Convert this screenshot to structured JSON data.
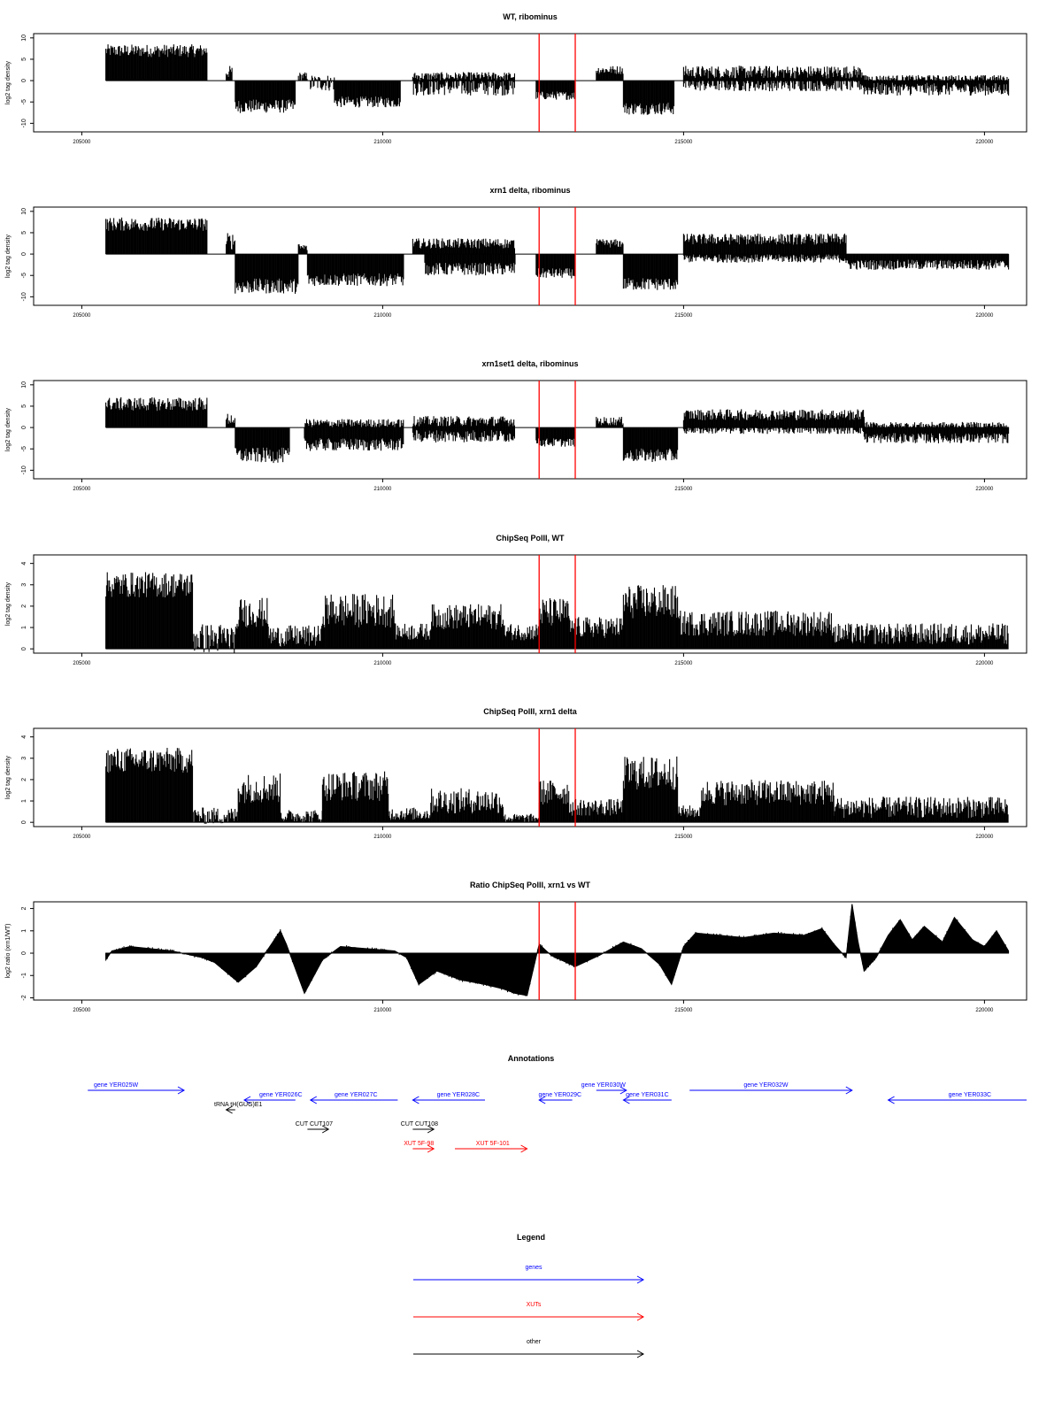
{
  "chart_data": [
    {
      "type": "bar",
      "title": "WT, ribominus",
      "xlabel": "",
      "ylabel": "log2 tag density",
      "xlim": [
        204200,
        220700
      ],
      "ylim": [
        -12,
        11
      ],
      "xticks": [
        205000,
        210000,
        215000,
        220000
      ],
      "yticks": [
        10,
        5,
        0,
        -5,
        -10
      ],
      "markers": [
        212600,
        213200
      ],
      "segments": [
        {
          "from": 205400,
          "to": 207080,
          "level": 7.0,
          "var": 1.5
        },
        {
          "from": 207400,
          "to": 207500,
          "level": 2.0,
          "var": 1.5
        },
        {
          "from": 207550,
          "to": 208550,
          "level": -6.0,
          "var": 1.6
        },
        {
          "from": 208600,
          "to": 208750,
          "level": 1.0,
          "var": 1.0
        },
        {
          "from": 208800,
          "to": 209200,
          "level": -0.5,
          "var": 2.0
        },
        {
          "from": 209200,
          "to": 210300,
          "level": -5.0,
          "var": 1.3
        },
        {
          "from": 210500,
          "to": 212200,
          "level": -1.5,
          "var": 2.0
        },
        {
          "from": 210500,
          "to": 212200,
          "level": 1.0,
          "var": 1.0
        },
        {
          "from": 212550,
          "to": 213200,
          "level": -3.5,
          "var": 1.0
        },
        {
          "from": 213550,
          "to": 214000,
          "level": 2.5,
          "var": 1.0
        },
        {
          "from": 214000,
          "to": 214850,
          "level": -6.5,
          "var": 1.5
        },
        {
          "from": 215000,
          "to": 218000,
          "level": 2.0,
          "var": 1.5
        },
        {
          "from": 215000,
          "to": 218000,
          "level": -1.0,
          "var": 1.5
        },
        {
          "from": 218000,
          "to": 220400,
          "level": -2.0,
          "var": 1.5
        },
        {
          "from": 218000,
          "to": 220400,
          "level": 0.5,
          "var": 0.8
        }
      ]
    },
    {
      "type": "bar",
      "title": "xrn1 delta, ribominus",
      "xlabel": "",
      "ylabel": "log2 tag density",
      "xlim": [
        204200,
        220700
      ],
      "ylim": [
        -12,
        11
      ],
      "xticks": [
        205000,
        210000,
        215000,
        220000
      ],
      "yticks": [
        10,
        5,
        0,
        -5,
        -10
      ],
      "markers": [
        212600,
        213200
      ],
      "segments": [
        {
          "from": 205400,
          "to": 207080,
          "level": 7.0,
          "var": 1.6
        },
        {
          "from": 207400,
          "to": 207550,
          "level": 3.0,
          "var": 2.0
        },
        {
          "from": 207550,
          "to": 208600,
          "level": -7.5,
          "var": 1.8
        },
        {
          "from": 208600,
          "to": 208750,
          "level": 1.5,
          "var": 1.0
        },
        {
          "from": 208750,
          "to": 210350,
          "level": -6.0,
          "var": 1.5
        },
        {
          "from": 210500,
          "to": 212200,
          "level": 2.5,
          "var": 1.2
        },
        {
          "from": 210700,
          "to": 212200,
          "level": -3.5,
          "var": 1.5
        },
        {
          "from": 212550,
          "to": 213200,
          "level": -4.5,
          "var": 1.2
        },
        {
          "from": 213550,
          "to": 214000,
          "level": 2.5,
          "var": 1.0
        },
        {
          "from": 214000,
          "to": 214900,
          "level": -7.0,
          "var": 1.5
        },
        {
          "from": 215000,
          "to": 217700,
          "level": 3.5,
          "var": 1.3
        },
        {
          "from": 215000,
          "to": 217700,
          "level": -1.0,
          "var": 1.0
        },
        {
          "from": 217700,
          "to": 220400,
          "level": -2.5,
          "var": 1.2
        }
      ]
    },
    {
      "type": "bar",
      "title": "xrn1set1 delta, ribominus",
      "xlabel": "",
      "ylabel": "log2 tag density",
      "xlim": [
        204200,
        220700
      ],
      "ylim": [
        -12,
        11
      ],
      "xticks": [
        205000,
        210000,
        215000,
        220000
      ],
      "yticks": [
        10,
        5,
        0,
        -5,
        -10
      ],
      "markers": [
        212600,
        213200
      ],
      "segments": [
        {
          "from": 205400,
          "to": 207080,
          "level": 5.5,
          "var": 1.6
        },
        {
          "from": 207400,
          "to": 207550,
          "level": 2.0,
          "var": 1.5
        },
        {
          "from": 207550,
          "to": 208450,
          "level": -6.5,
          "var": 1.8
        },
        {
          "from": 208700,
          "to": 210350,
          "level": -4.0,
          "var": 1.5
        },
        {
          "from": 208700,
          "to": 210350,
          "level": 1.0,
          "var": 1.0
        },
        {
          "from": 210500,
          "to": 212200,
          "level": -2.0,
          "var": 1.5
        },
        {
          "from": 210500,
          "to": 212200,
          "level": 1.5,
          "var": 1.2
        },
        {
          "from": 212550,
          "to": 213200,
          "level": -3.5,
          "var": 1.0
        },
        {
          "from": 213550,
          "to": 214000,
          "level": 1.5,
          "var": 1.0
        },
        {
          "from": 214000,
          "to": 214900,
          "level": -6.5,
          "var": 1.6
        },
        {
          "from": 215000,
          "to": 218000,
          "level": 3.0,
          "var": 1.3
        },
        {
          "from": 215000,
          "to": 218000,
          "level": -0.5,
          "var": 1.0
        },
        {
          "from": 218000,
          "to": 220400,
          "level": -2.5,
          "var": 1.2
        },
        {
          "from": 218000,
          "to": 220400,
          "level": 0.5,
          "var": 0.8
        }
      ]
    },
    {
      "type": "bar",
      "title": "ChipSeq PolII, WT",
      "xlabel": "",
      "ylabel": "log2 tag density",
      "xlim": [
        204200,
        220700
      ],
      "ylim": [
        -0.2,
        4.4
      ],
      "xticks": [
        205000,
        210000,
        215000,
        220000
      ],
      "yticks": [
        0,
        1,
        2,
        3,
        4
      ],
      "markers": [
        212600,
        213200
      ],
      "segments": [
        {
          "from": 205400,
          "to": 206850,
          "level": 3.0,
          "var": 0.6
        },
        {
          "from": 206850,
          "to": 207600,
          "level": 0.5,
          "var": 0.7
        },
        {
          "from": 207600,
          "to": 208100,
          "level": 1.7,
          "var": 0.7
        },
        {
          "from": 208100,
          "to": 209000,
          "level": 0.6,
          "var": 0.5
        },
        {
          "from": 209000,
          "to": 210200,
          "level": 1.8,
          "var": 0.8
        },
        {
          "from": 210200,
          "to": 210800,
          "level": 0.8,
          "var": 0.4
        },
        {
          "from": 210800,
          "to": 212000,
          "level": 1.5,
          "var": 0.6
        },
        {
          "from": 212000,
          "to": 212600,
          "level": 0.8,
          "var": 0.4
        },
        {
          "from": 212600,
          "to": 213100,
          "level": 1.7,
          "var": 0.7
        },
        {
          "from": 213100,
          "to": 214000,
          "level": 1.0,
          "var": 0.5
        },
        {
          "from": 214000,
          "to": 214900,
          "level": 2.2,
          "var": 0.8
        },
        {
          "from": 214900,
          "to": 217500,
          "level": 1.2,
          "var": 0.6
        },
        {
          "from": 217500,
          "to": 220400,
          "level": 0.7,
          "var": 0.5
        }
      ]
    },
    {
      "type": "bar",
      "title": "ChipSeq PolII, xrn1 delta",
      "xlabel": "",
      "ylabel": "log2 tag density",
      "xlim": [
        204200,
        220700
      ],
      "ylim": [
        -0.2,
        4.4
      ],
      "xticks": [
        205000,
        210000,
        215000,
        220000
      ],
      "yticks": [
        0,
        1,
        2,
        3,
        4
      ],
      "markers": [
        212600,
        213200
      ],
      "segments": [
        {
          "from": 205400,
          "to": 206850,
          "level": 2.9,
          "var": 0.6
        },
        {
          "from": 206850,
          "to": 207600,
          "level": 0.3,
          "var": 0.4
        },
        {
          "from": 207600,
          "to": 208300,
          "level": 1.6,
          "var": 0.7
        },
        {
          "from": 208300,
          "to": 209000,
          "level": 0.3,
          "var": 0.3
        },
        {
          "from": 209000,
          "to": 210100,
          "level": 1.7,
          "var": 0.7
        },
        {
          "from": 210100,
          "to": 210800,
          "level": 0.4,
          "var": 0.3
        },
        {
          "from": 210800,
          "to": 212000,
          "level": 1.0,
          "var": 0.6
        },
        {
          "from": 212000,
          "to": 212600,
          "level": 0.2,
          "var": 0.2
        },
        {
          "from": 212600,
          "to": 213100,
          "level": 1.4,
          "var": 0.6
        },
        {
          "from": 213100,
          "to": 214000,
          "level": 0.7,
          "var": 0.4
        },
        {
          "from": 214000,
          "to": 214900,
          "level": 2.3,
          "var": 0.8
        },
        {
          "from": 214900,
          "to": 215300,
          "level": 0.5,
          "var": 0.3
        },
        {
          "from": 215300,
          "to": 217500,
          "level": 1.4,
          "var": 0.6
        },
        {
          "from": 217500,
          "to": 220400,
          "level": 0.7,
          "var": 0.5
        }
      ]
    },
    {
      "type": "area",
      "title": "Ratio ChipSeq PolII, xrn1 vs WT",
      "xlabel": "",
      "ylabel": "log2 ratio (xrn1/WT)",
      "xlim": [
        204200,
        220700
      ],
      "ylim": [
        -2.1,
        2.3
      ],
      "xticks": [
        205000,
        210000,
        215000,
        220000
      ],
      "yticks": [
        2,
        1,
        0,
        -1,
        -2
      ],
      "markers": [
        212600,
        213200
      ],
      "x": [
        205400,
        205500,
        205800,
        206500,
        207000,
        207200,
        207600,
        207900,
        208300,
        208400,
        208700,
        208800,
        209000,
        209300,
        210200,
        210400,
        210600,
        210900,
        211300,
        211700,
        212000,
        212200,
        212400,
        212600,
        212800,
        213200,
        213600,
        214000,
        214300,
        214600,
        214800,
        215000,
        215200,
        215600,
        216000,
        216500,
        217000,
        217300,
        217500,
        217700,
        217800,
        217900,
        218000,
        218200,
        218400,
        218600,
        218800,
        219000,
        219300,
        219500,
        219800,
        220000,
        220200,
        220400
      ],
      "y": [
        -0.3,
        0.1,
        0.3,
        0.1,
        -0.2,
        -0.4,
        -1.3,
        -0.6,
        1.0,
        0.4,
        -1.8,
        -1.3,
        -0.3,
        0.3,
        0.1,
        -0.2,
        -1.4,
        -0.8,
        -1.2,
        -1.4,
        -1.6,
        -1.8,
        -1.9,
        0.4,
        -0.1,
        -0.6,
        -0.1,
        0.5,
        0.2,
        -0.5,
        -1.4,
        0.3,
        0.9,
        0.8,
        0.7,
        0.9,
        0.8,
        1.1,
        0.4,
        -0.2,
        2.2,
        0.5,
        -0.8,
        -0.2,
        0.8,
        1.5,
        0.6,
        1.2,
        0.5,
        1.6,
        0.6,
        0.3,
        1.0,
        0.1
      ]
    }
  ],
  "annotations": {
    "title": "Annotations",
    "items": [
      {
        "label": "gene YER025W",
        "start": 205100,
        "end": 206700,
        "dir": 1,
        "color": "#0000ff",
        "row": 0,
        "label_pos": 205200
      },
      {
        "label": "gene YER026C",
        "start": 207700,
        "end": 208550,
        "dir": -1,
        "color": "#0000ff",
        "row": 0.5,
        "label_pos": 207950
      },
      {
        "label": "gene YER027C",
        "start": 208800,
        "end": 210250,
        "dir": -1,
        "color": "#0000ff",
        "row": 0.5,
        "label_pos": 209200
      },
      {
        "label": "gene YER028C",
        "start": 210500,
        "end": 211700,
        "dir": -1,
        "color": "#0000ff",
        "row": 0.5,
        "label_pos": 210900
      },
      {
        "label": "gene YER029C",
        "start": 212600,
        "end": 213150,
        "dir": -1,
        "color": "#0000ff",
        "row": 0.5,
        "label_pos": 212590
      },
      {
        "label": "gene YER030W",
        "start": 213550,
        "end": 214050,
        "dir": 1,
        "color": "#0000ff",
        "row": 0,
        "label_pos": 213300
      },
      {
        "label": "gene YER031C",
        "start": 214000,
        "end": 214800,
        "dir": -1,
        "color": "#0000ff",
        "row": 0.5,
        "label_pos": 214040
      },
      {
        "label": "gene YER032W",
        "start": 215100,
        "end": 217800,
        "dir": 1,
        "color": "#0000ff",
        "row": 0,
        "label_pos": 216000
      },
      {
        "label": "gene YER033C",
        "start": 218400,
        "end": 220700,
        "dir": -1,
        "color": "#0000ff",
        "row": 0.5,
        "label_pos": 219400
      },
      {
        "label": "tRNA tH(GUG)E1",
        "start": 207400,
        "end": 207550,
        "dir": -1,
        "color": "#000000",
        "row": 1,
        "label_pos": 207200
      },
      {
        "label": "CUT CUT107",
        "start": 208750,
        "end": 209100,
        "dir": 1,
        "color": "#000000",
        "row": 2,
        "label_pos": 208550
      },
      {
        "label": "CUT CUT108",
        "start": 210500,
        "end": 210850,
        "dir": 1,
        "color": "#000000",
        "row": 2,
        "label_pos": 210300
      },
      {
        "label": "XUT 5F-98",
        "start": 210500,
        "end": 210850,
        "dir": 1,
        "color": "#ff0000",
        "row": 3,
        "label_pos": 210350
      },
      {
        "label": "XUT 5F-101",
        "start": 211200,
        "end": 212400,
        "dir": 1,
        "color": "#ff0000",
        "row": 3,
        "label_pos": 211550
      }
    ]
  },
  "legend": {
    "title": "Legend",
    "items": [
      {
        "label": "genes",
        "color": "#0000ff"
      },
      {
        "label": "XUTs",
        "color": "#ff0000"
      },
      {
        "label": "other",
        "color": "#000000"
      }
    ]
  }
}
